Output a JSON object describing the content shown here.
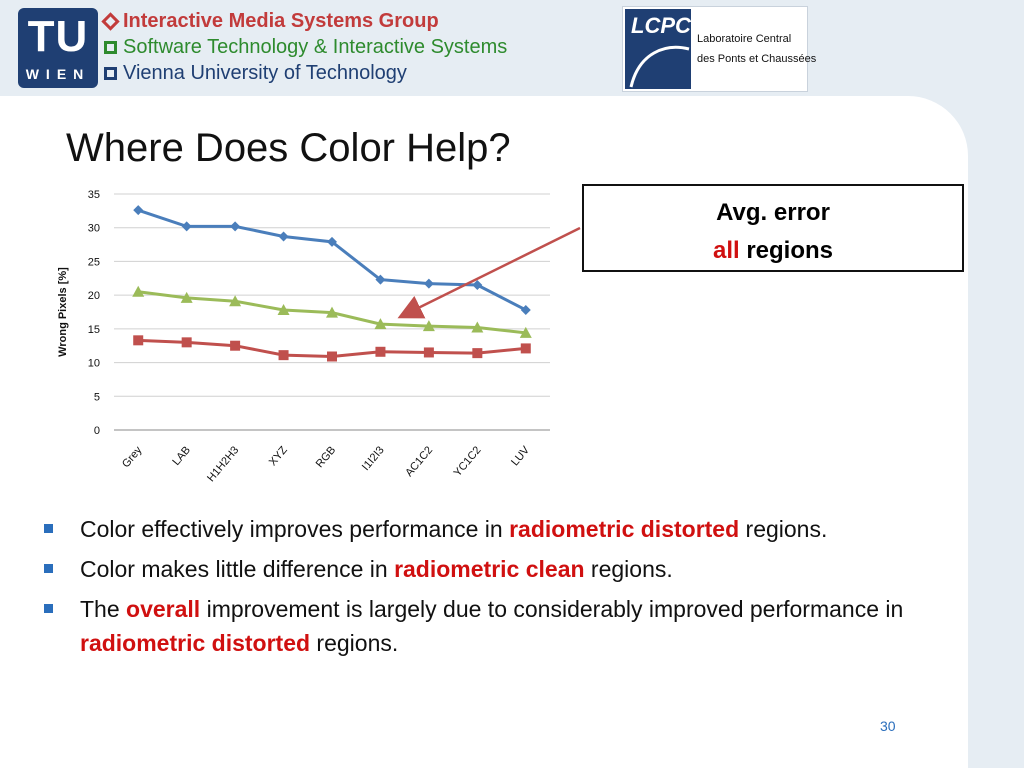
{
  "header": {
    "tu_logo_top": "TU",
    "tu_logo_bottom": "WIEN",
    "group_lines": [
      "Interactive Media Systems Group",
      "Software Technology & Interactive Systems",
      "Vienna University of Technology"
    ],
    "lcpc_name": "LCPC",
    "lcpc_line1": "Laboratoire Central",
    "lcpc_line2": "des Ponts et Chaussées"
  },
  "slide": {
    "title": "Where Does Color Help?",
    "callout_line1": "Avg. error",
    "callout_em": "all",
    "callout_rest": " regions",
    "bullets": [
      {
        "pre": "Color effectively improves performance in ",
        "em": "radiometric distorted",
        "post": " regions."
      },
      {
        "pre": "Color makes little difference in ",
        "em": "radiometric clean",
        "post": " regions."
      },
      {
        "pre": "The ",
        "em": "overall",
        "mid": " improvement is largely due to considerably improved performance in ",
        "em2": "radiometric distorted",
        "post": " regions."
      }
    ],
    "page_number": "30"
  },
  "colors": {
    "accent_blue": "#1f3f73",
    "emphasis_red": "#d01010",
    "series_blue": "#4a7ebb",
    "series_green": "#9bbb59",
    "series_red": "#c0504d"
  },
  "chart_data": {
    "type": "line",
    "categories": [
      "Grey",
      "LAB",
      "H1H2H3",
      "XYZ",
      "RGB",
      "I1I2I3",
      "AC1C2",
      "YC1C2",
      "LUV"
    ],
    "ylabel": "Wrong Pixels [%]",
    "ylim": [
      0,
      35
    ],
    "yticks": [
      0,
      5,
      10,
      15,
      20,
      25,
      30,
      35
    ],
    "grid": true,
    "series": [
      {
        "values": [
          32.6,
          30.2,
          30.2,
          28.7,
          27.9,
          22.3,
          21.7,
          21.5,
          17.8
        ],
        "marker": "diamond",
        "color": "#4a7ebb"
      },
      {
        "values": [
          20.5,
          19.6,
          19.1,
          17.8,
          17.4,
          15.7,
          15.4,
          15.2,
          14.4
        ],
        "marker": "triangle",
        "color": "#9bbb59"
      },
      {
        "values": [
          13.3,
          13.0,
          12.5,
          11.1,
          10.9,
          11.6,
          11.5,
          11.4,
          12.1
        ],
        "marker": "square",
        "color": "#c0504d"
      }
    ]
  }
}
